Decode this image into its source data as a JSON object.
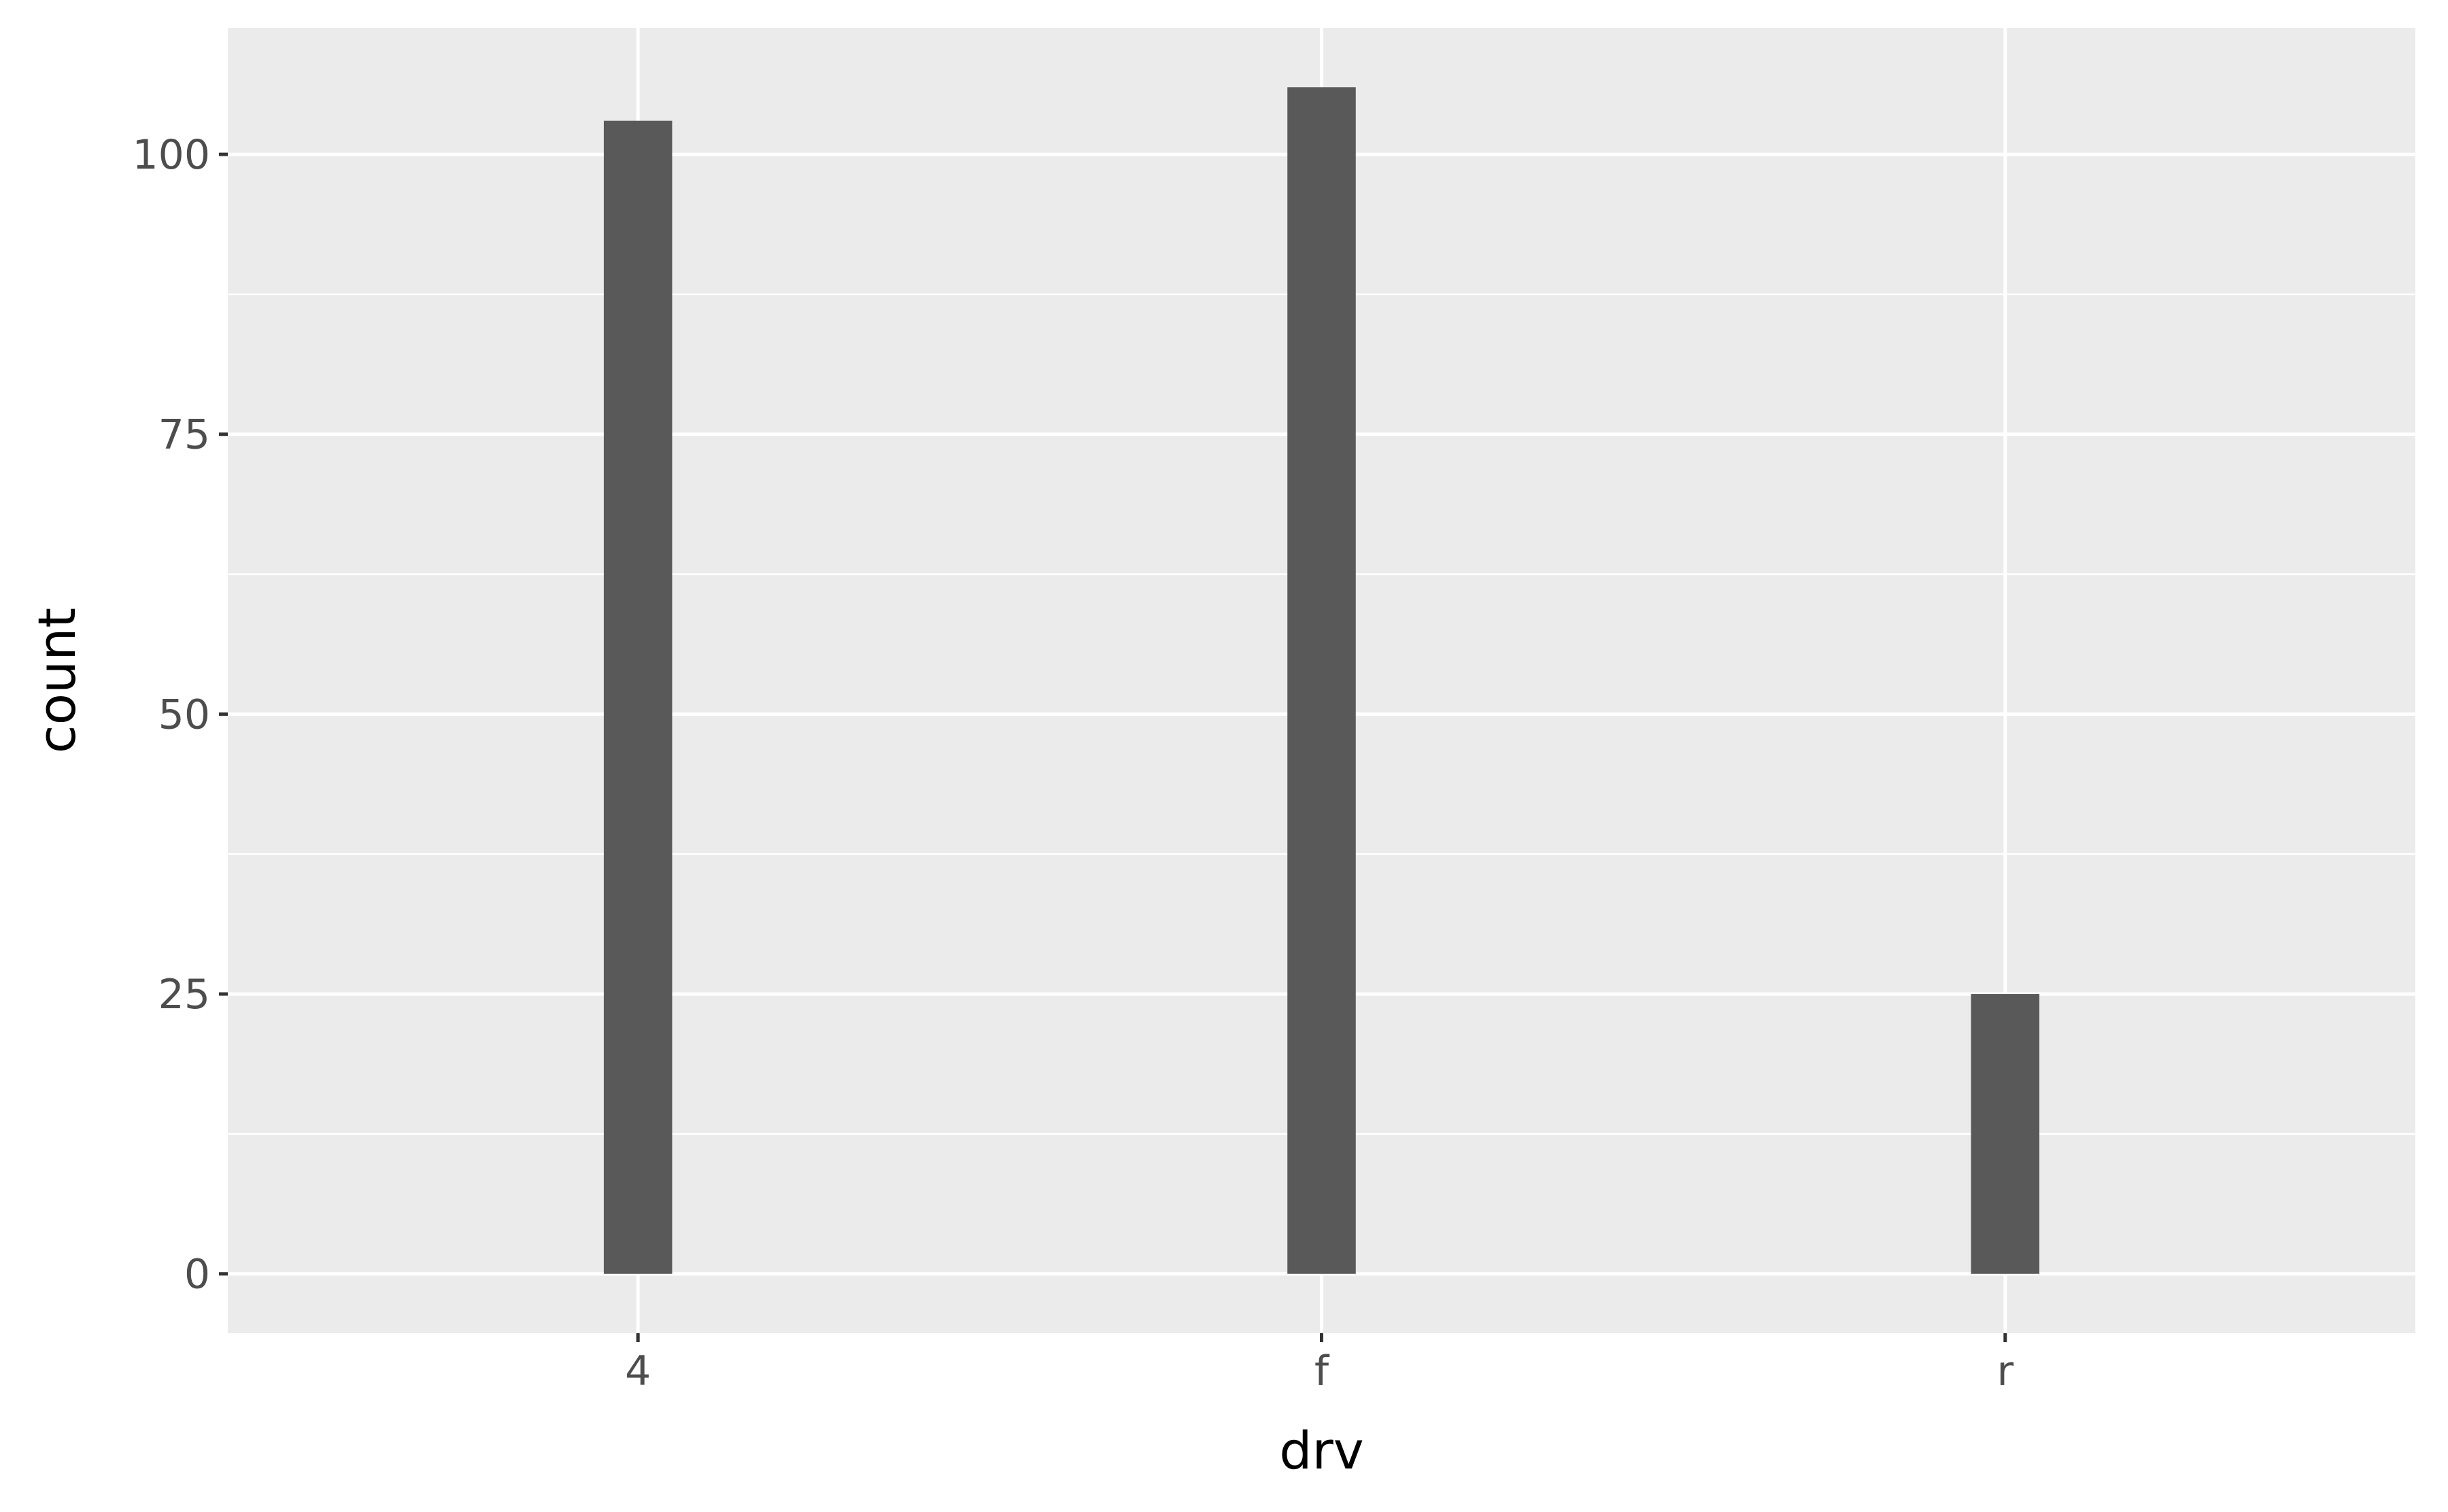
{
  "chart_data": {
    "type": "bar",
    "title": "",
    "xlabel": "drv",
    "ylabel": "count",
    "categories": [
      "4",
      "f",
      "r"
    ],
    "values": [
      103,
      106,
      25
    ],
    "ylim": [
      -5.3,
      111.3
    ],
    "xlim": [
      0.4,
      3.6
    ],
    "yticks": [
      0,
      25,
      50,
      75,
      100
    ],
    "yminor": [
      12.5,
      37.5,
      62.5,
      87.5
    ],
    "grid": true,
    "colors": {
      "panel": "#EBEBEB",
      "grid": "#FFFFFF",
      "bar": "#595959",
      "tick_text": "#4D4D4D",
      "tick": "#333333",
      "axis_title": "#000000"
    }
  }
}
